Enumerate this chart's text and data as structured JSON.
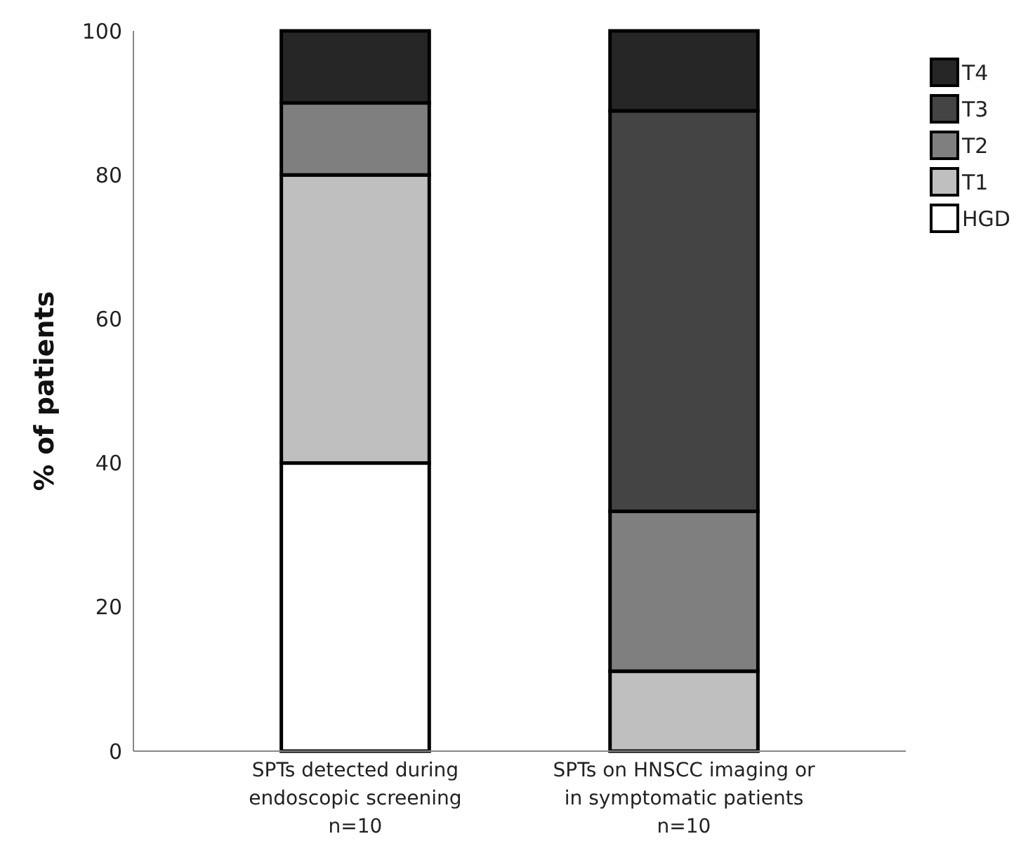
{
  "chart_data": {
    "type": "bar",
    "stacked": true,
    "ylabel": "% of patients",
    "categories": [
      "SPTs detected during\nendoscopic screening\nn=10",
      "SPTs on HNSCC imaging or\nin symptomatic patients\nn=10"
    ],
    "series": [
      {
        "name": "HGD",
        "color": "#ffffff",
        "values": [
          40,
          0
        ]
      },
      {
        "name": "T1",
        "color": "#bfbfbf",
        "values": [
          40,
          11.1
        ]
      },
      {
        "name": "T2",
        "color": "#7f7f7f",
        "values": [
          10,
          22.2
        ]
      },
      {
        "name": "T3",
        "color": "#444444",
        "values": [
          0,
          55.6
        ]
      },
      {
        "name": "T4",
        "color": "#262626",
        "values": [
          10,
          11.1
        ]
      }
    ],
    "ylim": [
      0,
      100
    ],
    "yticks": [
      0,
      20,
      40,
      60,
      80,
      100
    ],
    "grid": false,
    "legend": "top right"
  }
}
